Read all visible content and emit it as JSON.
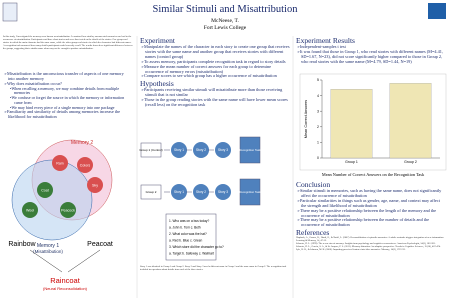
{
  "header": {
    "title": "Similar Stimuli and Misattribution",
    "author": "McNeese, T.",
    "affiliation": "Fort Lewis College"
  },
  "intro": {
    "text": "In this study, I investigated the memory error known as misattribution. I examined how similar, unconnected memories can lead to the occurrence of misattribution. Participants read three short stories and were then tested on the details of the stories. One group read stories in which the main character had the same name, while the other group read stories in which the characters had different names. A recognition task measured how many details participants could correctly recall. The results showed no significant difference between the groups, suggesting that a similar name alone may not be enough to produce misattribution."
  },
  "background": {
    "items": [
      "Misattribution is the unconscious transfer of aspects of one memory into another memory",
      "Why does misattribution occur?"
    ],
    "sub": [
      "When recalling a memory, we may combine details from multiple memories",
      "We confuse or forget the source in which the memory or information came from",
      "We may bind every piece of a single memory into one package"
    ],
    "last": "Familiarity and similarity of details among memories increase the likelihood for misattribution"
  },
  "venn": {
    "memory2": "Memory 2",
    "memory1": "Memory 1",
    "memory1_note": "(Misattribution)",
    "nodes": [
      "Rain",
      "Colors",
      "Sky",
      "Coat",
      "Wool",
      "Peacock"
    ],
    "words": [
      "Rainbow",
      "Peacoat"
    ],
    "result": "Raincoat",
    "result_note": "(Neural Reconsolidation)"
  },
  "experiment": {
    "heading": "Experiment",
    "bullets": [
      "Manipulate the names of the character in each story to create one group that receives stories with the same name and another group that receives stories with different names (control group)",
      "To assess memory, participants complete recognition task in regard to story details",
      "Measure the mean number of correct answers for each group to determine occurrence of memory errors (misattribution)",
      "Compare scores to see which group has a higher occurrence of misattribution"
    ]
  },
  "hypothesis": {
    "heading": "Hypothesis",
    "bullets": [
      "Participants receiving similar stimuli will misattribute more than those receiving stimuli that is not similar",
      "Those in the group reading stories with the same name will have lower mean scores (recall less) on the recognition task"
    ]
  },
  "design": {
    "groups": [
      "Group 1 (Control)",
      "Group 2"
    ],
    "stories": [
      "Story 1",
      "Story 2",
      "Story 3"
    ],
    "task": "Recognition Task",
    "questions": [
      "1. Who was on a bus today?",
      "a. John  b. Tom  c. Beth",
      "2. What color was the hat?",
      "a. Red  b. Blue  c. Green",
      "3. Which store did the character go to?",
      "a. Target  b. Safeway  c. Walmart"
    ],
    "footnote": "Story 1 was identical in Group 1 and Group 2. Story 2 and Story 3 used a different name in Group 1 and the same name in Group 2. The recognition task included ten questions about details from each of the three stories."
  },
  "results": {
    "heading": "Experiment Results",
    "bullets": [
      "Independent-samples t test",
      "It was found that those in Group 1, who read stories with different names (M=4.41, SD=1.67, N=23), did not score significantly higher compared to those in Group 2, who read stories with the same name (M=4.79, SD=1.44, N=19)"
    ],
    "chart": {
      "type": "bar",
      "ylabel": "Mean Correct Answers",
      "categories": [
        "Group 1",
        "Group 2"
      ],
      "values": [
        4.41,
        4.79
      ],
      "color": "#efe6b4",
      "ylim": [
        0,
        5
      ],
      "yticks": [
        0,
        1,
        2,
        3,
        4,
        5
      ],
      "caption": "Mean Number of Correct Answers on the Recognition Task"
    }
  },
  "conclusion": {
    "heading": "Conclusion",
    "bullets": [
      "Similar stimuli in memories, such as having the same name, does not significantly affect the occurrence of misattribution",
      "Particular similarities in things such as gender, age, name, and context may affect the strength and likelihood of misattribution",
      "There may be a positive relationship between the length of the memory and the occurrence of misattribution",
      "There may be a positive relationship between the number of details and the occurrence of misattribution"
    ]
  },
  "references": {
    "heading": "References",
    "items": [
      "Hupbach, A., Gomez, R., Hardt, O., & Nadel, L. (2007). Reconsolidation of episodic memories: A subtle reminder triggers integration of new information. Learning & Memory, 14, 47-53.",
      "Schacter, D. L. (1999). The seven sins of memory: Insights from psychology and cognitive neuroscience. American Psychologist, 54(3), 182-203.",
      "Schacter, D. L., Guerin, S. A., & St. Jacques, P. L. (2011). Memory distortion: An adaptive perspective. Trends in Cognitive Sciences, 15(10), 467-474.",
      "Lyle, K. B., & Johnson, M. K. (2006). Importing perceived features into false memories. Memory, 14(2), 197-213."
    ]
  }
}
